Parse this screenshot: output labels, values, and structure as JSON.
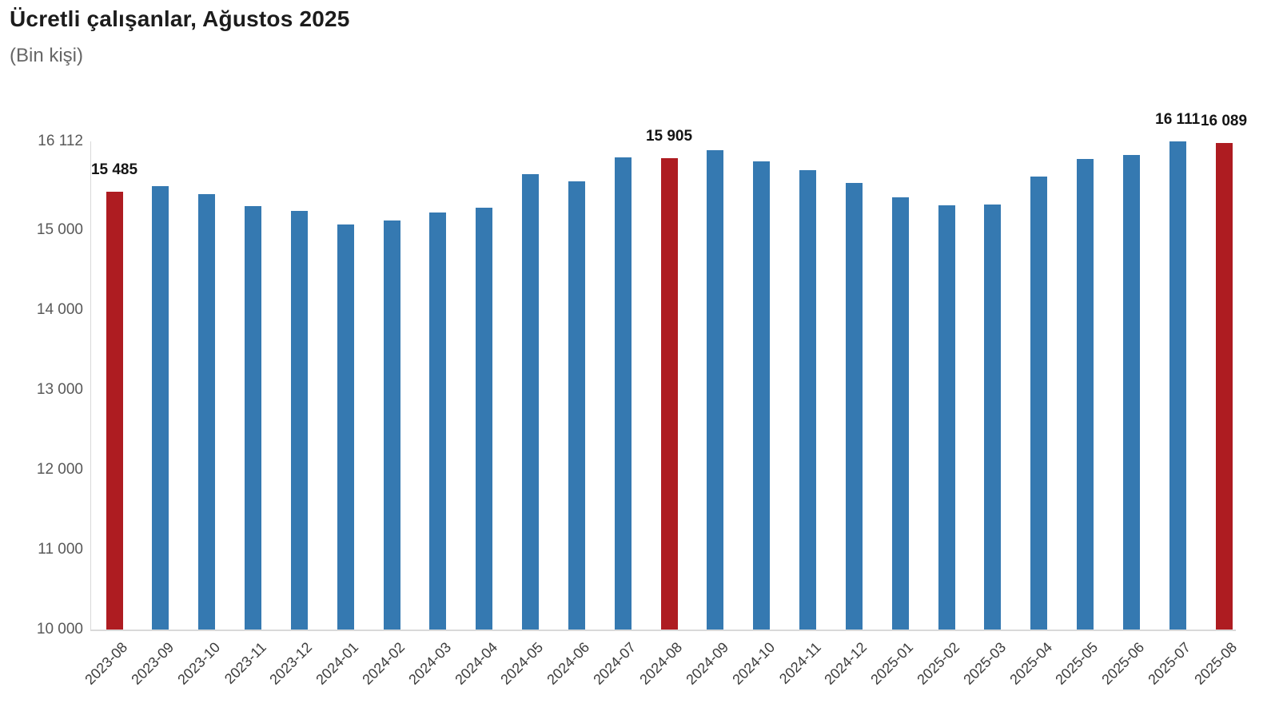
{
  "header": {
    "title": "Ücretli çalışanlar, Ağustos 2025",
    "subtitle": "(Bin kişi)"
  },
  "chart_data": {
    "type": "bar",
    "title": "Ücretli çalışanlar, Ağustos 2025",
    "subtitle": "(Bin kişi)",
    "unit": "Bin kişi",
    "categories": [
      "2023-08",
      "2023-09",
      "2023-10",
      "2023-11",
      "2023-12",
      "2024-01",
      "2024-02",
      "2024-03",
      "2024-04",
      "2024-05",
      "2024-06",
      "2024-07",
      "2024-08",
      "2024-09",
      "2024-10",
      "2024-11",
      "2024-12",
      "2025-01",
      "2025-02",
      "2025-03",
      "2025-04",
      "2025-05",
      "2025-06",
      "2025-07",
      "2025-08"
    ],
    "values": [
      15485,
      15555,
      15450,
      15305,
      15245,
      15075,
      15125,
      15225,
      15280,
      15705,
      15615,
      15915,
      15905,
      16000,
      15865,
      15750,
      15590,
      15415,
      15310,
      15325,
      15675,
      15895,
      15940,
      16111,
      16089
    ],
    "highlighted_categories": [
      "2023-08",
      "2024-08",
      "2025-08"
    ],
    "data_labels": [
      {
        "index": 0,
        "text": "15 485"
      },
      {
        "index": 12,
        "text": "15 905"
      },
      {
        "index": 23,
        "text": "16 111"
      },
      {
        "index": 24,
        "text": "16 089"
      }
    ],
    "yticks": [
      {
        "value": 16112,
        "label": "16 112"
      },
      {
        "value": 15000,
        "label": "15 000"
      },
      {
        "value": 14000,
        "label": "14 000"
      },
      {
        "value": 13000,
        "label": "13 000"
      },
      {
        "value": 12000,
        "label": "12 000"
      },
      {
        "value": 11000,
        "label": "11 000"
      },
      {
        "value": 10000,
        "label": "10 000"
      }
    ],
    "ylim": [
      10000,
      16112
    ],
    "xlabel": "",
    "ylabel": "",
    "grid": false,
    "legend": "none",
    "colors": {
      "bar": "#3579b1",
      "highlight": "#ae1c21",
      "axis_line": "#d9d9d9",
      "tick_text": "#595959",
      "x_tick_text": "#3d3d3d",
      "data_label_text": "#141414"
    }
  }
}
